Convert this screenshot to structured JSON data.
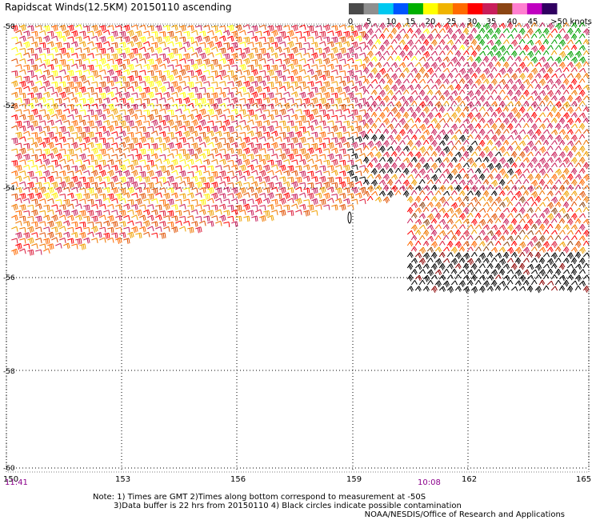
{
  "title": "Rapidscat Winds(12.5KM) 20150110 ascending",
  "colorbar": {
    "unit_label": ">50 knots",
    "tick_labels": [
      "0",
      "5",
      "10",
      "15",
      "20",
      "25",
      "30",
      "35",
      "40",
      "45"
    ],
    "colors": [
      "#4a4a4a",
      "#8f8f8f",
      "#00c8f0",
      "#0055ff",
      "#00b000",
      "#ffff00",
      "#f0b400",
      "#ff6a00",
      "#ff0000",
      "#c81e5a",
      "#8b4513",
      "#ff7fd0",
      "#c000c0",
      "#300060"
    ]
  },
  "map": {
    "lon_labels": [
      "150",
      "153",
      "156",
      "159",
      "162",
      "165"
    ],
    "lat_labels": [
      "-50",
      "-52",
      "-54",
      "-56",
      "-58",
      "-60"
    ],
    "grid": "dotted"
  },
  "time_labels": {
    "left": "11:41",
    "mid": "10:08"
  },
  "notes": {
    "line1": "Note:  1) Times are GMT 2)Times along bottom correspond to measurement at -50S",
    "line2": "3)Data buffer is 22 hrs from 20150110 4) Black circles indicate possible contamination"
  },
  "credit": "NOAA/NESDIS/Office of Research and Applications"
}
